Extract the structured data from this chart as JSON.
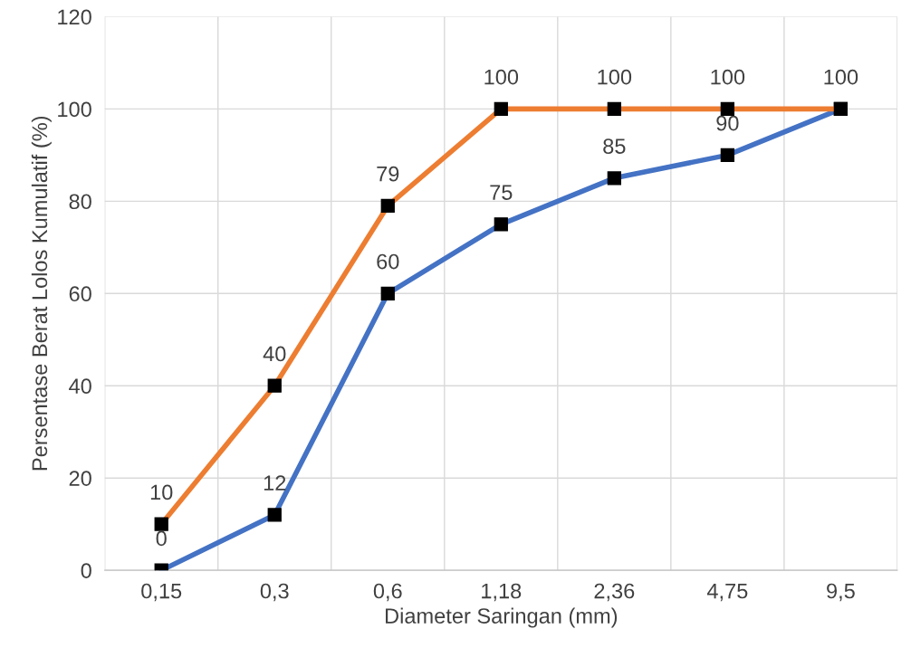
{
  "chart_data": {
    "type": "line",
    "xlabel": "Diameter Saringan (mm)",
    "ylabel": "Persentase Berat Lolos Kumulatif (%)",
    "categories": [
      "0,15",
      "0,3",
      "0,6",
      "1,18",
      "2,36",
      "4,75",
      "9,5"
    ],
    "series": [
      {
        "color": "#4472c4",
        "values": [
          0,
          12,
          60,
          75,
          85,
          90,
          100
        ],
        "value_labels": [
          "0",
          "12",
          "60",
          "75",
          "85",
          "90",
          null
        ]
      },
      {
        "color": "#ed7d31",
        "values": [
          10,
          40,
          79,
          100,
          100,
          100,
          100
        ]
      }
    ],
    "ylim": [
      0,
      120
    ],
    "yticks": [
      0,
      20,
      40,
      60,
      80,
      100,
      120
    ],
    "grid": true,
    "marker": "square",
    "line_style": "solid",
    "data_labels": true
  }
}
